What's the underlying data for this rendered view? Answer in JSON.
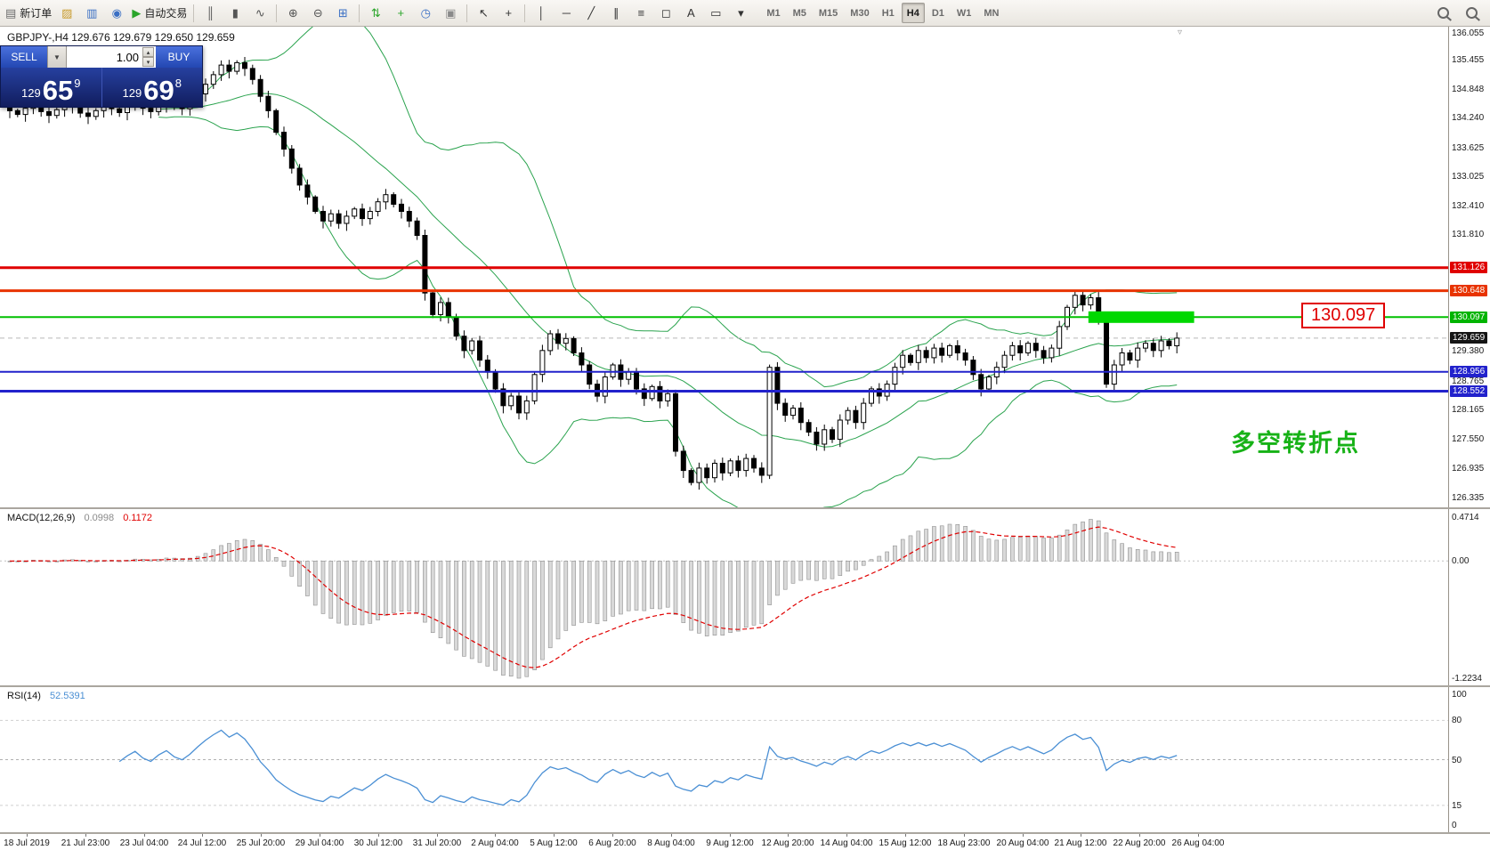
{
  "toolbar": {
    "groups": [
      [
        {
          "name": "new-order-button",
          "glyph": "▤",
          "color": "#6b6b6b",
          "label": "新订单"
        },
        {
          "name": "charts-window-button",
          "glyph": "▨",
          "color": "#c89a2a"
        },
        {
          "name": "profiles-button",
          "glyph": "▥",
          "color": "#3a6fc4"
        },
        {
          "name": "alerts-button",
          "glyph": "◉",
          "color": "#3a6fc4"
        },
        {
          "name": "autotrading-button",
          "glyph": "▶",
          "color": "#2aa52a",
          "label": "自动交易"
        }
      ],
      [
        {
          "name": "bar-chart-button",
          "glyph": "║",
          "color": "#555555"
        },
        {
          "name": "candlestick-chart-button",
          "glyph": "▮",
          "color": "#555555"
        },
        {
          "name": "line-chart-button",
          "glyph": "∿",
          "color": "#555555"
        }
      ],
      [
        {
          "name": "zoom-in-button",
          "glyph": "⊕",
          "color": "#555555"
        },
        {
          "name": "zoom-out-button",
          "glyph": "⊖",
          "color": "#555555"
        },
        {
          "name": "tile-windows-button",
          "glyph": "⊞",
          "color": "#3a6fc4"
        }
      ],
      [
        {
          "name": "arrange-windows-button",
          "glyph": "⇅",
          "color": "#2aa52a"
        },
        {
          "name": "indicators-button",
          "glyph": "+",
          "color": "#2aa52a"
        },
        {
          "name": "periods-button",
          "glyph": "◷",
          "color": "#3a6fc4"
        },
        {
          "name": "templates-button",
          "glyph": "▣",
          "color": "#8a8a8a"
        }
      ],
      [
        {
          "name": "cursor-button",
          "glyph": "↖",
          "color": "#333333"
        },
        {
          "name": "crosshair-button",
          "glyph": "+",
          "color": "#333333"
        }
      ],
      [
        {
          "name": "vertical-line-button",
          "glyph": "│",
          "color": "#333333"
        },
        {
          "name": "horizontal-line-button",
          "glyph": "─",
          "color": "#333333"
        },
        {
          "name": "trendline-button",
          "glyph": "╱",
          "color": "#333333"
        },
        {
          "name": "equidistant-channel-button",
          "glyph": "∥",
          "color": "#333333"
        },
        {
          "name": "fibonacci-button",
          "glyph": "≡",
          "color": "#333333"
        },
        {
          "name": "shapes-button",
          "glyph": "◻",
          "color": "#333333"
        },
        {
          "name": "text-button",
          "glyph": "A",
          "color": "#333333"
        },
        {
          "name": "text-label-button",
          "glyph": "▭",
          "color": "#333333"
        },
        {
          "name": "arrows-button",
          "glyph": "▾",
          "color": "#333333"
        }
      ]
    ],
    "timeframes": [
      "M1",
      "M5",
      "M15",
      "M30",
      "H1",
      "H4",
      "D1",
      "W1",
      "MN"
    ],
    "active_timeframe": "H4"
  },
  "quote_panel": {
    "sell_label": "SELL",
    "buy_label": "BUY",
    "volume_value": "1.00",
    "sell_price": {
      "prefix": "129",
      "big": "65",
      "sup": "9"
    },
    "buy_price": {
      "prefix": "129",
      "big": "69",
      "sup": "8"
    }
  },
  "chart_header": {
    "symbol_ohlc": "GBPJPY-,H4  129.676 129.679 129.650 129.659"
  },
  "annotations": {
    "turning_point_text": "多空转折点",
    "turning_point_color": "#17b217",
    "level_callout_text": "130.097",
    "level_callout_color": "#e00000"
  },
  "chart_data": {
    "type": "candlestick",
    "symbol": "GBPJPY-",
    "timeframe": "H4",
    "ohlc_note": "closes estimated from pixels; open[i]=close[i-1]",
    "closes": [
      134.4,
      134.32,
      134.45,
      134.52,
      134.38,
      134.3,
      134.42,
      134.55,
      134.47,
      134.35,
      134.28,
      134.4,
      134.5,
      134.44,
      134.36,
      134.48,
      134.58,
      134.45,
      134.38,
      134.52,
      134.62,
      134.5,
      134.44,
      134.56,
      134.75,
      134.95,
      135.15,
      135.35,
      135.22,
      135.4,
      135.28,
      135.05,
      134.7,
      134.4,
      133.95,
      133.6,
      133.2,
      132.85,
      132.6,
      132.3,
      132.1,
      132.25,
      132.05,
      132.2,
      132.35,
      132.15,
      132.3,
      132.5,
      132.65,
      132.45,
      132.3,
      132.1,
      131.8,
      130.6,
      130.15,
      130.4,
      130.1,
      129.7,
      129.4,
      129.6,
      129.2,
      128.95,
      128.6,
      128.25,
      128.45,
      128.1,
      128.35,
      128.9,
      129.4,
      129.75,
      129.55,
      129.65,
      129.35,
      129.1,
      128.7,
      128.45,
      128.85,
      129.1,
      128.8,
      128.95,
      128.6,
      128.4,
      128.65,
      128.35,
      128.5,
      127.3,
      126.9,
      126.65,
      126.95,
      126.75,
      127.05,
      126.85,
      127.1,
      126.9,
      127.15,
      126.95,
      126.8,
      129.05,
      128.3,
      128.05,
      128.2,
      127.9,
      127.7,
      127.45,
      127.75,
      127.55,
      127.95,
      128.15,
      127.9,
      128.3,
      128.6,
      128.45,
      128.7,
      129.05,
      129.3,
      129.15,
      129.4,
      129.25,
      129.45,
      129.3,
      129.5,
      129.35,
      129.2,
      128.9,
      128.6,
      128.85,
      129.05,
      129.3,
      129.5,
      129.35,
      129.55,
      129.4,
      129.25,
      129.45,
      129.9,
      130.3,
      130.55,
      130.35,
      130.5,
      130.1,
      128.7,
      129.1,
      129.35,
      129.2,
      129.45,
      129.55,
      129.4,
      129.6,
      129.5,
      129.659
    ],
    "horizontal_levels": [
      {
        "price": 131.126,
        "color": "#e00000",
        "width": 3
      },
      {
        "price": 130.648,
        "color": "#e83300",
        "width": 3
      },
      {
        "price": 130.097,
        "color": "#00c000",
        "width": 2
      },
      {
        "price": 128.956,
        "color": "#2222cc",
        "width": 2
      },
      {
        "price": 128.552,
        "color": "#2222cc",
        "width": 3
      }
    ],
    "current_price": 129.659,
    "highlight_rect": {
      "price": 130.097,
      "from_bar": 137.7,
      "to_bar": 151.2,
      "color": "#00d800"
    },
    "bollinger": {
      "period": 20,
      "deviation": 2,
      "color": "#2aa34e"
    },
    "price_axis_visible_range": [
      126.335,
      136.055
    ]
  },
  "price_axis": [
    {
      "text": "136.055",
      "price": 136.055
    },
    {
      "text": "135.455",
      "price": 135.455
    },
    {
      "text": "134.848",
      "price": 134.848
    },
    {
      "text": "134.240",
      "price": 134.24
    },
    {
      "text": "133.625",
      "price": 133.625
    },
    {
      "text": "133.025",
      "price": 133.025
    },
    {
      "text": "132.410",
      "price": 132.41
    },
    {
      "text": "131.810",
      "price": 131.81
    },
    {
      "text": "131.126",
      "price": 131.126,
      "bg": "#e00000"
    },
    {
      "text": "130.648",
      "price": 130.648,
      "bg": "#e83300"
    },
    {
      "text": "130.097",
      "price": 130.097,
      "bg": "#00b400"
    },
    {
      "text": "129.659",
      "price": 129.659,
      "bg": "#151515"
    },
    {
      "text": "129.380",
      "price": 129.38
    },
    {
      "text": "128.956",
      "price": 128.956,
      "bg": "#2222cc"
    },
    {
      "text": "128.765",
      "price": 128.765
    },
    {
      "text": "128.552",
      "price": 128.552,
      "bg": "#2222cc"
    },
    {
      "text": "128.165",
      "price": 128.165
    },
    {
      "text": "127.550",
      "price": 127.55
    },
    {
      "text": "126.935",
      "price": 126.935
    },
    {
      "text": "126.335",
      "price": 126.335
    }
  ],
  "macd_panel": {
    "title": "MACD(12,26,9)",
    "value_macd": "0.0998",
    "value_signal": "0.1172",
    "fast": 12,
    "slow": 26,
    "signal": 9,
    "axis_labels": [
      "0.4714",
      "0.00",
      "-1.2234"
    ],
    "histogram_color": "#d9d9d9",
    "signal_color": "#e00000"
  },
  "rsi_panel": {
    "title": "RSI(14)",
    "value": "52.5391",
    "period": 14,
    "axis_values": [
      100,
      80,
      50,
      15,
      0
    ],
    "level_lines": [
      80,
      50,
      15
    ],
    "line_color": "#4a8fd4"
  },
  "time_axis": [
    "18 Jul 2019",
    "21 Jul 23:00",
    "23 Jul 04:00",
    "24 Jul 12:00",
    "25 Jul 20:00",
    "29 Jul 04:00",
    "30 Jul 12:00",
    "31 Jul 20:00",
    "2 Aug 04:00",
    "5 Aug 12:00",
    "6 Aug 20:00",
    "8 Aug 04:00",
    "9 Aug 12:00",
    "12 Aug 20:00",
    "14 Aug 04:00",
    "15 Aug 12:00",
    "18 Aug 23:00",
    "20 Aug 04:00",
    "21 Aug 12:00",
    "22 Aug 20:00",
    "26 Aug 04:00"
  ]
}
